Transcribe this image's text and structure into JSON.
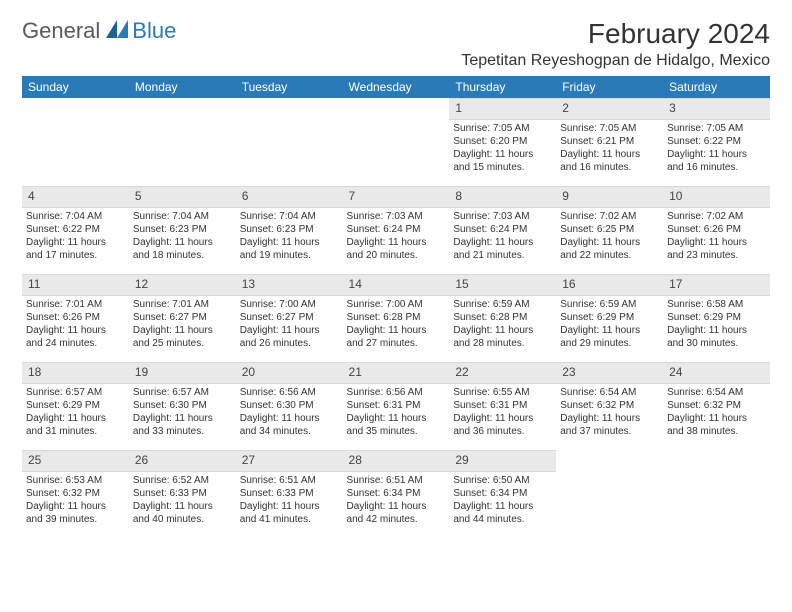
{
  "logo": {
    "general": "General",
    "blue": "Blue"
  },
  "title": "February 2024",
  "location": "Tepetitan Reyeshogpan de Hidalgo, Mexico",
  "colors": {
    "header_bg": "#2a7ab8",
    "header_text": "#ffffff",
    "daynum_bg": "#e9e9e9",
    "text": "#333333",
    "page_bg": "#ffffff"
  },
  "weekdays": [
    "Sunday",
    "Monday",
    "Tuesday",
    "Wednesday",
    "Thursday",
    "Friday",
    "Saturday"
  ],
  "grid": [
    [
      null,
      null,
      null,
      null,
      {
        "n": "1",
        "sr": "Sunrise: 7:05 AM",
        "ss": "Sunset: 6:20 PM",
        "dl1": "Daylight: 11 hours",
        "dl2": "and 15 minutes."
      },
      {
        "n": "2",
        "sr": "Sunrise: 7:05 AM",
        "ss": "Sunset: 6:21 PM",
        "dl1": "Daylight: 11 hours",
        "dl2": "and 16 minutes."
      },
      {
        "n": "3",
        "sr": "Sunrise: 7:05 AM",
        "ss": "Sunset: 6:22 PM",
        "dl1": "Daylight: 11 hours",
        "dl2": "and 16 minutes."
      }
    ],
    [
      {
        "n": "4",
        "sr": "Sunrise: 7:04 AM",
        "ss": "Sunset: 6:22 PM",
        "dl1": "Daylight: 11 hours",
        "dl2": "and 17 minutes."
      },
      {
        "n": "5",
        "sr": "Sunrise: 7:04 AM",
        "ss": "Sunset: 6:23 PM",
        "dl1": "Daylight: 11 hours",
        "dl2": "and 18 minutes."
      },
      {
        "n": "6",
        "sr": "Sunrise: 7:04 AM",
        "ss": "Sunset: 6:23 PM",
        "dl1": "Daylight: 11 hours",
        "dl2": "and 19 minutes."
      },
      {
        "n": "7",
        "sr": "Sunrise: 7:03 AM",
        "ss": "Sunset: 6:24 PM",
        "dl1": "Daylight: 11 hours",
        "dl2": "and 20 minutes."
      },
      {
        "n": "8",
        "sr": "Sunrise: 7:03 AM",
        "ss": "Sunset: 6:24 PM",
        "dl1": "Daylight: 11 hours",
        "dl2": "and 21 minutes."
      },
      {
        "n": "9",
        "sr": "Sunrise: 7:02 AM",
        "ss": "Sunset: 6:25 PM",
        "dl1": "Daylight: 11 hours",
        "dl2": "and 22 minutes."
      },
      {
        "n": "10",
        "sr": "Sunrise: 7:02 AM",
        "ss": "Sunset: 6:26 PM",
        "dl1": "Daylight: 11 hours",
        "dl2": "and 23 minutes."
      }
    ],
    [
      {
        "n": "11",
        "sr": "Sunrise: 7:01 AM",
        "ss": "Sunset: 6:26 PM",
        "dl1": "Daylight: 11 hours",
        "dl2": "and 24 minutes."
      },
      {
        "n": "12",
        "sr": "Sunrise: 7:01 AM",
        "ss": "Sunset: 6:27 PM",
        "dl1": "Daylight: 11 hours",
        "dl2": "and 25 minutes."
      },
      {
        "n": "13",
        "sr": "Sunrise: 7:00 AM",
        "ss": "Sunset: 6:27 PM",
        "dl1": "Daylight: 11 hours",
        "dl2": "and 26 minutes."
      },
      {
        "n": "14",
        "sr": "Sunrise: 7:00 AM",
        "ss": "Sunset: 6:28 PM",
        "dl1": "Daylight: 11 hours",
        "dl2": "and 27 minutes."
      },
      {
        "n": "15",
        "sr": "Sunrise: 6:59 AM",
        "ss": "Sunset: 6:28 PM",
        "dl1": "Daylight: 11 hours",
        "dl2": "and 28 minutes."
      },
      {
        "n": "16",
        "sr": "Sunrise: 6:59 AM",
        "ss": "Sunset: 6:29 PM",
        "dl1": "Daylight: 11 hours",
        "dl2": "and 29 minutes."
      },
      {
        "n": "17",
        "sr": "Sunrise: 6:58 AM",
        "ss": "Sunset: 6:29 PM",
        "dl1": "Daylight: 11 hours",
        "dl2": "and 30 minutes."
      }
    ],
    [
      {
        "n": "18",
        "sr": "Sunrise: 6:57 AM",
        "ss": "Sunset: 6:29 PM",
        "dl1": "Daylight: 11 hours",
        "dl2": "and 31 minutes."
      },
      {
        "n": "19",
        "sr": "Sunrise: 6:57 AM",
        "ss": "Sunset: 6:30 PM",
        "dl1": "Daylight: 11 hours",
        "dl2": "and 33 minutes."
      },
      {
        "n": "20",
        "sr": "Sunrise: 6:56 AM",
        "ss": "Sunset: 6:30 PM",
        "dl1": "Daylight: 11 hours",
        "dl2": "and 34 minutes."
      },
      {
        "n": "21",
        "sr": "Sunrise: 6:56 AM",
        "ss": "Sunset: 6:31 PM",
        "dl1": "Daylight: 11 hours",
        "dl2": "and 35 minutes."
      },
      {
        "n": "22",
        "sr": "Sunrise: 6:55 AM",
        "ss": "Sunset: 6:31 PM",
        "dl1": "Daylight: 11 hours",
        "dl2": "and 36 minutes."
      },
      {
        "n": "23",
        "sr": "Sunrise: 6:54 AM",
        "ss": "Sunset: 6:32 PM",
        "dl1": "Daylight: 11 hours",
        "dl2": "and 37 minutes."
      },
      {
        "n": "24",
        "sr": "Sunrise: 6:54 AM",
        "ss": "Sunset: 6:32 PM",
        "dl1": "Daylight: 11 hours",
        "dl2": "and 38 minutes."
      }
    ],
    [
      {
        "n": "25",
        "sr": "Sunrise: 6:53 AM",
        "ss": "Sunset: 6:32 PM",
        "dl1": "Daylight: 11 hours",
        "dl2": "and 39 minutes."
      },
      {
        "n": "26",
        "sr": "Sunrise: 6:52 AM",
        "ss": "Sunset: 6:33 PM",
        "dl1": "Daylight: 11 hours",
        "dl2": "and 40 minutes."
      },
      {
        "n": "27",
        "sr": "Sunrise: 6:51 AM",
        "ss": "Sunset: 6:33 PM",
        "dl1": "Daylight: 11 hours",
        "dl2": "and 41 minutes."
      },
      {
        "n": "28",
        "sr": "Sunrise: 6:51 AM",
        "ss": "Sunset: 6:34 PM",
        "dl1": "Daylight: 11 hours",
        "dl2": "and 42 minutes."
      },
      {
        "n": "29",
        "sr": "Sunrise: 6:50 AM",
        "ss": "Sunset: 6:34 PM",
        "dl1": "Daylight: 11 hours",
        "dl2": "and 44 minutes."
      },
      null,
      null
    ]
  ]
}
